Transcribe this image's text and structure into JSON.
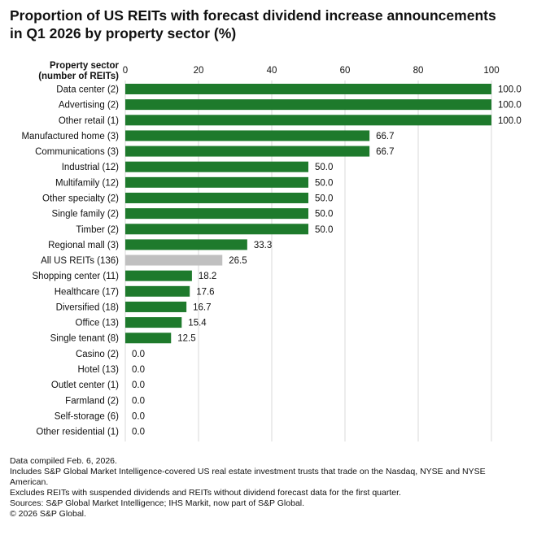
{
  "title": {
    "line1": "Proportion of US REITs with forecast dividend increase announcements",
    "line2": "in Q1 2026 by property sector (%)"
  },
  "colors": {
    "bar": "#1e7a2c",
    "highlight_bar": "#c0c0c0",
    "grid": "#d9d9d9",
    "text": "#111111"
  },
  "chart_data": {
    "type": "bar",
    "orientation": "horizontal",
    "title": "Proportion of US REITs with forecast dividend increase announcements in Q1 2026 by property sector (%)",
    "ylabel_line1": "Property sector",
    "ylabel_line2": "(number of REITs)",
    "xlim": [
      0,
      100
    ],
    "xticks": [
      0,
      20,
      40,
      60,
      80,
      100
    ],
    "highlight_category": "All US REITs (136)",
    "categories": [
      "Data center (2)",
      "Advertising (2)",
      "Other retail (1)",
      "Manufactured home (3)",
      "Communications (3)",
      "Industrial (12)",
      "Multifamily (12)",
      "Other specialty (2)",
      "Single family (2)",
      "Timber (2)",
      "Regional mall (3)",
      "All US REITs (136)",
      "Shopping center (11)",
      "Healthcare (17)",
      "Diversified (18)",
      "Office (13)",
      "Single tenant (8)",
      "Casino (2)",
      "Hotel (13)",
      "Outlet center (1)",
      "Farmland (2)",
      "Self-storage (6)",
      "Other residential (1)"
    ],
    "values": [
      100.0,
      100.0,
      100.0,
      66.7,
      66.7,
      50.0,
      50.0,
      50.0,
      50.0,
      50.0,
      33.3,
      26.5,
      18.2,
      17.6,
      16.7,
      15.4,
      12.5,
      0.0,
      0.0,
      0.0,
      0.0,
      0.0,
      0.0
    ],
    "value_labels": [
      "100.0",
      "100.0",
      "100.0",
      "66.7",
      "66.7",
      "50.0",
      "50.0",
      "50.0",
      "50.0",
      "50.0",
      "33.3",
      "26.5",
      "18.2",
      "17.6",
      "16.7",
      "15.4",
      "12.5",
      "0.0",
      "0.0",
      "0.0",
      "0.0",
      "0.0",
      "0.0"
    ]
  },
  "footnotes": {
    "compiled": "Data compiled Feb. 6, 2026.",
    "includes_1": "Includes S&P Global Market Intelligence-covered US real estate investment trusts that trade on the Nasdaq, NYSE and NYSE",
    "includes_2": "American.",
    "excludes": "Excludes REITs with suspended dividends and REITs without dividend forecast data for the first quarter.",
    "sources": "Sources: S&P Global Market Intelligence; IHS Markit, now part of S&P Global.",
    "copyright": "© 2026 S&P Global."
  }
}
